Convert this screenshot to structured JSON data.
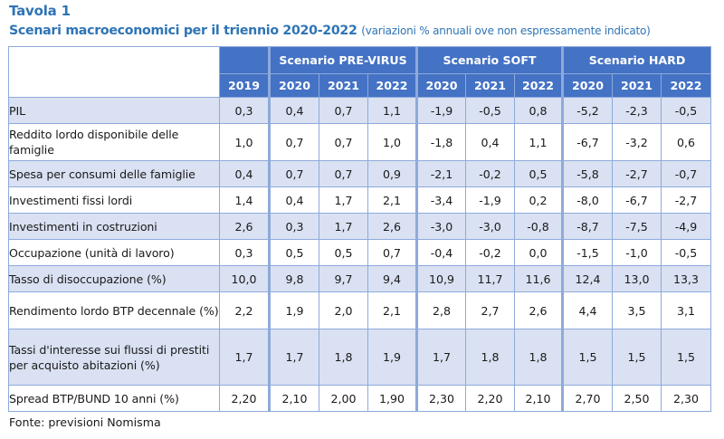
{
  "title": "Tavola 1",
  "subtitle": "Scenari macroeconomici per il triennio 2020-2022",
  "subtitle_note": "(variazioni % annuali ove non espressamente indicato)",
  "table": {
    "scenarios": [
      "Scenario PRE-VIRUS",
      "Scenario SOFT",
      "Scenario HARD"
    ],
    "years": [
      "2019",
      "2020",
      "2021",
      "2022",
      "2020",
      "2021",
      "2022",
      "2020",
      "2021",
      "2022"
    ],
    "rows": [
      {
        "label": "PIL",
        "values": [
          "0,3",
          "0,4",
          "0,7",
          "1,1",
          "-1,9",
          "-0,5",
          "0,8",
          "-5,2",
          "-2,3",
          "-0,5"
        ]
      },
      {
        "label": "Reddito lordo disponibile delle famiglie",
        "values": [
          "1,0",
          "0,7",
          "0,7",
          "1,0",
          "-1,8",
          "0,4",
          "1,1",
          "-6,7",
          "-3,2",
          "0,6"
        ]
      },
      {
        "label": "Spesa per consumi delle famiglie",
        "values": [
          "0,4",
          "0,7",
          "0,7",
          "0,9",
          "-2,1",
          "-0,2",
          "0,5",
          "-5,8",
          "-2,7",
          "-0,7"
        ]
      },
      {
        "label": "Investimenti fissi lordi",
        "values": [
          "1,4",
          "0,4",
          "1,7",
          "2,1",
          "-3,4",
          "-1,9",
          "0,2",
          "-8,0",
          "-6,7",
          "-2,7"
        ]
      },
      {
        "label": "Investimenti in costruzioni",
        "values": [
          "2,6",
          "0,3",
          "1,7",
          "2,6",
          "-3,0",
          "-3,0",
          "-0,8",
          "-8,7",
          "-7,5",
          "-4,9"
        ]
      },
      {
        "label": "Occupazione (unità di lavoro)",
        "values": [
          "0,3",
          "0,5",
          "0,5",
          "0,7",
          "-0,4",
          "-0,2",
          "0,0",
          "-1,5",
          "-1,0",
          "-0,5"
        ]
      },
      {
        "label": "Tasso di disoccupazione (%)",
        "values": [
          "10,0",
          "9,8",
          "9,7",
          "9,4",
          "10,9",
          "11,7",
          "11,6",
          "12,4",
          "13,0",
          "13,3"
        ]
      },
      {
        "label": "Rendimento lordo BTP decennale (%)",
        "values": [
          "2,2",
          "1,9",
          "2,0",
          "2,1",
          "2,8",
          "2,7",
          "2,6",
          "4,4",
          "3,5",
          "3,1"
        ]
      },
      {
        "label": "Tassi d'interesse sui flussi di prestiti per acquisto abitazioni (%)",
        "values": [
          "1,7",
          "1,7",
          "1,8",
          "1,9",
          "1,7",
          "1,8",
          "1,8",
          "1,5",
          "1,5",
          "1,5"
        ]
      },
      {
        "label": "Spread BTP/BUND 10 anni (%)",
        "values": [
          "2,20",
          "2,10",
          "2,00",
          "1,90",
          "2,30",
          "2,20",
          "2,10",
          "2,70",
          "2,50",
          "2,30"
        ]
      }
    ]
  },
  "footer": "Fonte: previsioni Nomisma",
  "colors": {
    "title": "#2e74b5",
    "header_bg": "#4472c4",
    "band_bg": "#d9e1f2",
    "border": "#8eaadb"
  }
}
